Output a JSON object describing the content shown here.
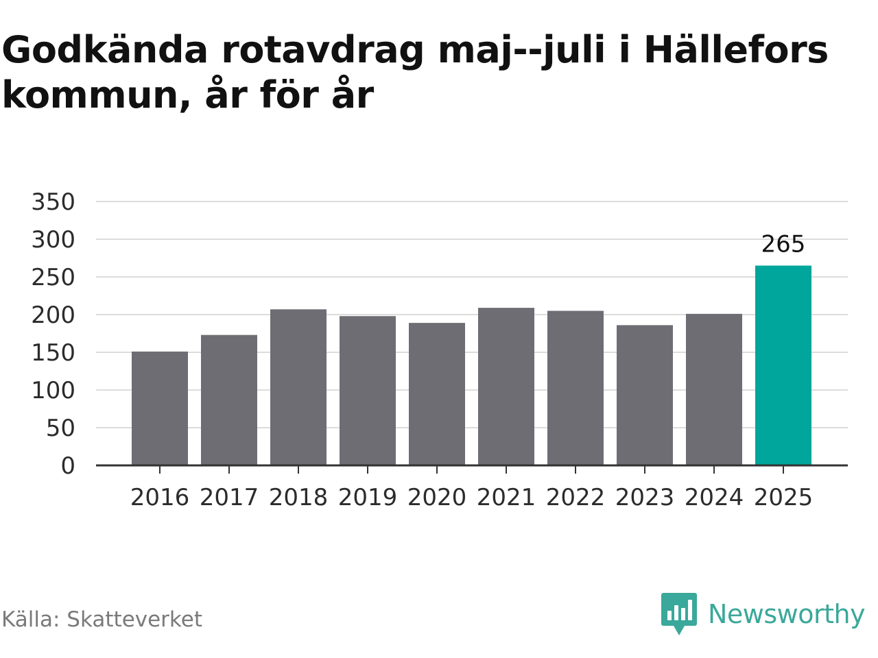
{
  "title": "Godkända rotavdrag maj--juli i Hällefors kommun, år för år",
  "source": "Källa: Skatteverket",
  "brand": {
    "name": "Newsworthy",
    "icon": "newsworthy-logo-icon",
    "color": "#3aa89a"
  },
  "chart_data": {
    "type": "bar",
    "title": "Godkända rotavdrag maj--juli i Hällefors kommun, år för år",
    "xlabel": "",
    "ylabel": "",
    "categories": [
      "2016",
      "2017",
      "2018",
      "2019",
      "2020",
      "2021",
      "2022",
      "2023",
      "2024",
      "2025"
    ],
    "values": [
      151,
      173,
      207,
      198,
      189,
      209,
      205,
      186,
      201,
      265
    ],
    "ylim": [
      0,
      350
    ],
    "yticks": [
      "0",
      "50",
      "100",
      "150",
      "200",
      "250",
      "300",
      "350"
    ],
    "grid": true,
    "bar_color": "#6e6d73",
    "highlight_color": "#00a59b",
    "highlight_category": "2025",
    "data_labels": [
      {
        "category": "2025",
        "text": "265"
      }
    ]
  }
}
